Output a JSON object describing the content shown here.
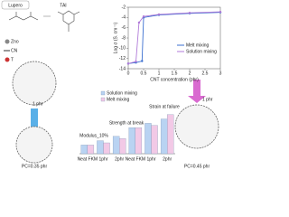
{
  "labels": {
    "lupero": "Lupero",
    "tai": "TAI",
    "zno": "Zno",
    "cn": "CN",
    "t": "T",
    "phr_left": "1 phr",
    "phr_right": "1 phr",
    "pc_left": "PC=0.35 phr",
    "pc_right": "PC=0.45 phr"
  },
  "chart_data": [
    {
      "type": "line",
      "xlabel": "CNT concentration (phr)",
      "ylabel": "Log σ (S. cm⁻¹)",
      "xlim": [
        0,
        3
      ],
      "xticks": [
        0,
        0.5,
        1,
        1.5,
        2,
        2.5,
        3
      ],
      "ylim": [
        -14,
        -2
      ],
      "yticks": [
        -2,
        -4,
        -6,
        -8,
        -10,
        -12,
        -14
      ],
      "legend": "right",
      "series": [
        {
          "name": "Melt mixing",
          "color": "#3b6fd0",
          "x": [
            0,
            0.25,
            0.45,
            0.5,
            1,
            2,
            3
          ],
          "values": [
            -13,
            -12.8,
            -12.5,
            -4,
            -3.5,
            -3.2,
            -3
          ]
        },
        {
          "name": "Solution mixing",
          "color": "#b07ad8",
          "x": [
            0,
            0.25,
            0.35,
            0.5,
            1,
            2,
            3
          ],
          "values": [
            -13,
            -12.6,
            -5,
            -3.8,
            -3.4,
            -3.1,
            -2.9
          ]
        }
      ]
    },
    {
      "type": "bar",
      "annotations": [
        "Modulus_10%",
        "Strength at break",
        "Strain at failure"
      ],
      "categories": [
        "Neat FKM",
        "1phr",
        "2phr",
        "Neat FKM",
        "1phr",
        "2phr"
      ],
      "ylim": [
        0,
        10
      ],
      "series": [
        {
          "name": "Solution mixing",
          "color": "#b9d3f2",
          "values": [
            2,
            3,
            4,
            6,
            7,
            8
          ]
        },
        {
          "name": "Melt mixing",
          "color": "#f2c9e6",
          "values": [
            2,
            2.5,
            3.5,
            6,
            6.5,
            9
          ]
        }
      ]
    }
  ]
}
